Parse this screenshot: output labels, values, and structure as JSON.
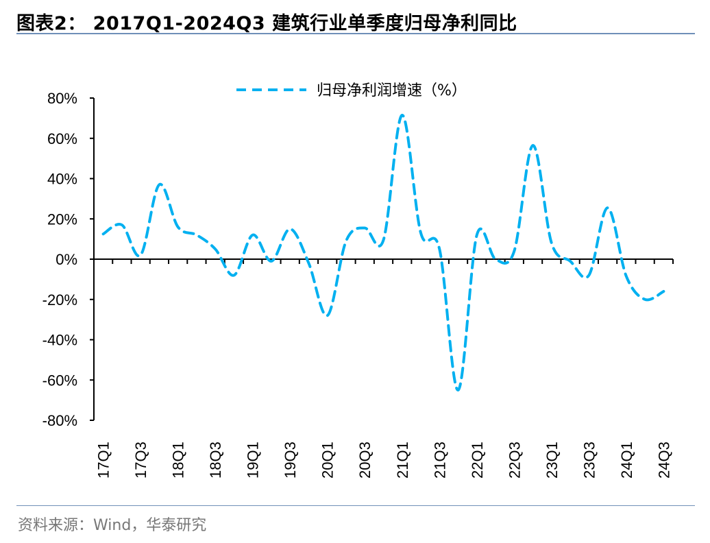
{
  "title": "图表2： 2017Q1-2024Q3 建筑行业单季度归母净利同比",
  "source": "资料来源：Wind，华泰研究",
  "chart_data": {
    "type": "line",
    "title": "",
    "xlabel": "",
    "ylabel": "",
    "ylim": [
      -80,
      80
    ],
    "yticks": [
      80,
      60,
      40,
      20,
      0,
      -20,
      -40,
      -60,
      -80
    ],
    "ytick_labels": [
      "80%",
      "60%",
      "40%",
      "20%",
      "0%",
      "-20%",
      "-40%",
      "-60%",
      "-80%"
    ],
    "grid": false,
    "legend_position": "top-center",
    "categories": [
      "17Q1",
      "17Q2",
      "17Q3",
      "17Q4",
      "18Q1",
      "18Q2",
      "18Q3",
      "18Q4",
      "19Q1",
      "19Q2",
      "19Q3",
      "19Q4",
      "20Q1",
      "20Q2",
      "20Q3",
      "20Q4",
      "21Q1",
      "21Q2",
      "21Q3",
      "21Q4",
      "22Q1",
      "22Q2",
      "22Q3",
      "22Q4",
      "23Q1",
      "23Q2",
      "23Q3",
      "23Q4",
      "24Q1",
      "24Q2",
      "24Q3"
    ],
    "xtick_labels": [
      "17Q1",
      "17Q3",
      "18Q1",
      "18Q3",
      "19Q1",
      "19Q3",
      "20Q1",
      "20Q3",
      "21Q1",
      "21Q3",
      "22Q1",
      "22Q3",
      "23Q1",
      "23Q3",
      "24Q1",
      "24Q3"
    ],
    "series": [
      {
        "name": "归母净利润增速（%）",
        "color": "#00b0f0",
        "style": "dashed",
        "values": [
          12.5,
          17,
          2,
          37,
          16,
          12,
          5,
          -8,
          12,
          -1,
          15,
          -2,
          -28,
          9,
          15.5,
          9.5,
          71.5,
          13,
          5,
          -65,
          12,
          0,
          4,
          56.5,
          8,
          -1,
          -8,
          25.5,
          -8.5,
          -20,
          -16
        ]
      }
    ]
  }
}
